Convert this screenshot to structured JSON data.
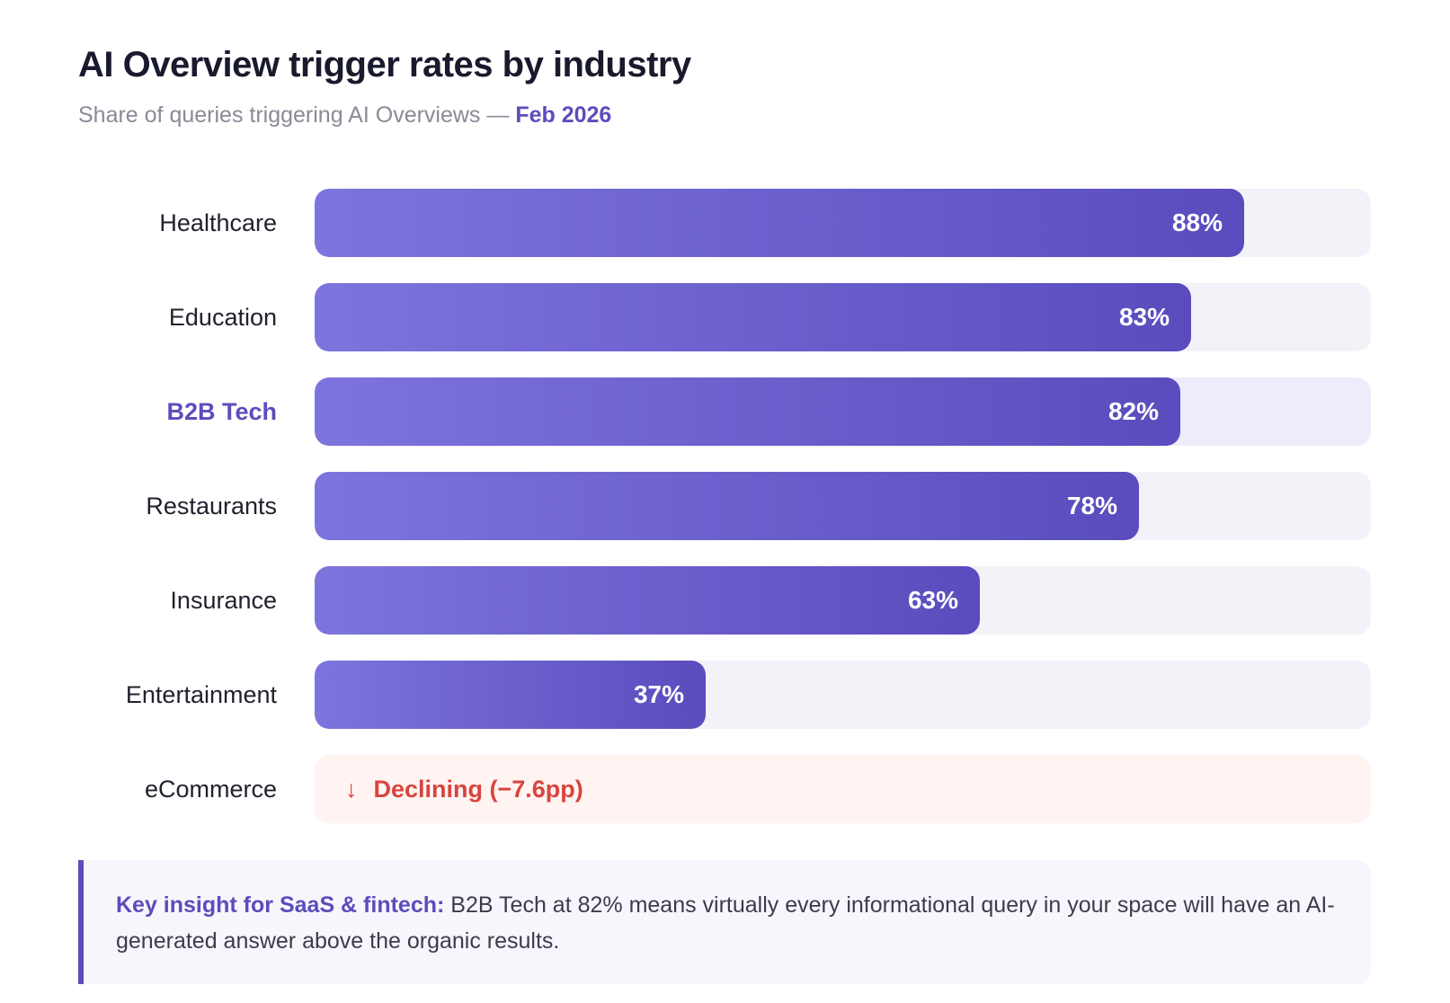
{
  "header": {
    "title": "AI Overview trigger rates by industry",
    "subtitle_prefix": "Share of queries triggering AI Overviews — ",
    "subtitle_date": "Feb 2026"
  },
  "colors": {
    "accent": "#5b4dbb",
    "bar_start": "#7d74dd",
    "bar_end": "#5a4cbd",
    "track": "#f3f2f8",
    "decline": "#d9443f"
  },
  "chart_data": {
    "type": "bar",
    "orientation": "horizontal",
    "categories": [
      "Healthcare",
      "Education",
      "B2B Tech",
      "Restaurants",
      "Insurance",
      "Entertainment",
      "eCommerce"
    ],
    "values": [
      88,
      83,
      82,
      78,
      63,
      37,
      null
    ],
    "value_labels": [
      "88%",
      "83%",
      "82%",
      "78%",
      "63%",
      "37%",
      ""
    ],
    "highlighted_category": "B2B Tech",
    "xlim": [
      0,
      100
    ],
    "grid": false,
    "annotations": [
      {
        "category": "eCommerce",
        "icon": "arrow-down-icon",
        "text": "Declining (−7.6pp)"
      }
    ]
  },
  "insight": {
    "lead": "Key insight for SaaS & fintech:",
    "body": " B2B Tech at 82% means virtually every informational query in your space will have an AI-generated answer above the organic results."
  }
}
